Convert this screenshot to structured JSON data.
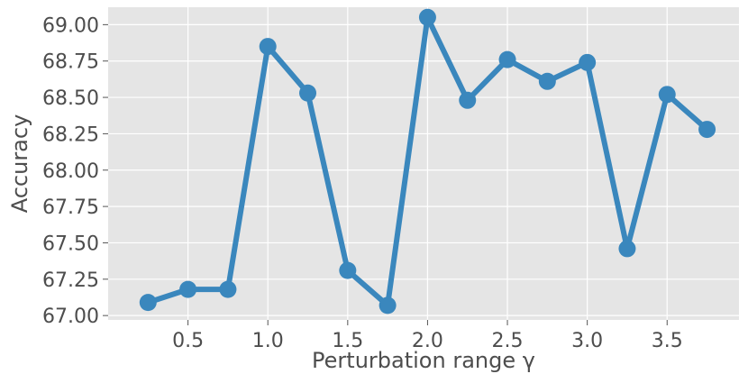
{
  "chart_data": {
    "type": "line",
    "xlabel": "Perturbation range γ",
    "ylabel": "Accuracy",
    "xlim": [
      0.0,
      3.95
    ],
    "ylim": [
      66.97,
      69.12
    ],
    "xticks": [
      "0.5",
      "1.0",
      "1.5",
      "2.0",
      "2.5",
      "3.0",
      "3.5"
    ],
    "yticks": [
      "67.00",
      "67.25",
      "67.50",
      "67.75",
      "68.00",
      "68.25",
      "68.50",
      "68.75",
      "69.00"
    ],
    "grid": true,
    "legend": "none",
    "colors": {
      "line": "#3a87bd",
      "background": "#e5e5e5",
      "grid": "#ffffff"
    },
    "series": [
      {
        "x": [
          0.25,
          0.5,
          0.75,
          1.0,
          1.25,
          1.5,
          1.75,
          2.0,
          2.25,
          2.5,
          2.75,
          3.0,
          3.25,
          3.5,
          3.75
        ],
        "values": [
          67.09,
          67.18,
          67.18,
          68.85,
          68.53,
          67.31,
          67.07,
          69.05,
          68.48,
          68.76,
          68.61,
          68.74,
          67.46,
          68.52,
          68.28
        ]
      }
    ]
  }
}
